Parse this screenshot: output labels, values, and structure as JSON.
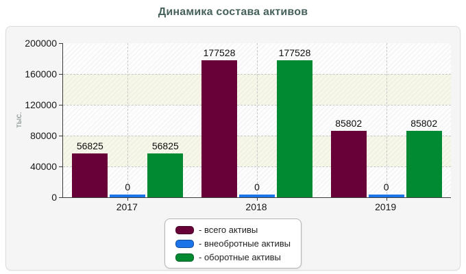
{
  "title": "Динамика состава активов",
  "chart_data": {
    "type": "bar",
    "title": "Динамика состава активов",
    "ylabel": "тыс.",
    "categories": [
      "2017",
      "2018",
      "2019"
    ],
    "series": [
      {
        "name": "- всего активы",
        "color": "#670138",
        "values": [
          56825,
          177528,
          85802
        ]
      },
      {
        "name": "- внеобротные активы",
        "color": "#1b74e8",
        "values": [
          0,
          0,
          0
        ]
      },
      {
        "name": "- оборотные активы",
        "color": "#028a33",
        "values": [
          56825,
          177528,
          85802
        ]
      }
    ],
    "ylim": [
      0,
      200000
    ],
    "yticks": [
      0,
      40000,
      80000,
      120000,
      160000,
      200000
    ],
    "value_labels": true,
    "grid": "dashed",
    "legend_position": "bottom",
    "band_colors": [
      "#fdfdfd",
      "#f7f7e9"
    ],
    "title_color": "#46605c",
    "axis_color": "#3a3a3a",
    "label_color": "#161616"
  }
}
